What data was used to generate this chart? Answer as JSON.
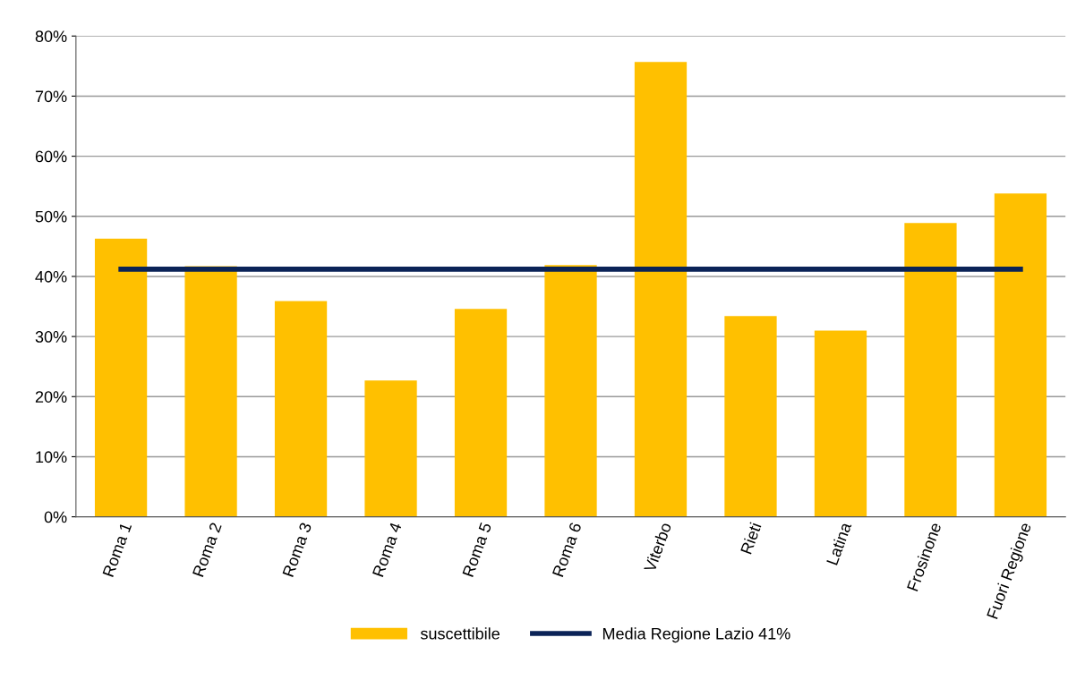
{
  "chart_data": {
    "type": "bar",
    "categories": [
      "Roma 1",
      "Roma 2",
      "Roma 3",
      "Roma 4",
      "Roma 5",
      "Roma 6",
      "Viterbo",
      "Rieti",
      "Latina",
      "Frosinone",
      "Fuori Regione"
    ],
    "series": [
      {
        "name": "suscettibile",
        "color": "#ffc000",
        "values": [
          46.3,
          41.7,
          35.9,
          22.7,
          34.6,
          41.9,
          75.7,
          33.4,
          31.0,
          48.9,
          53.8
        ]
      },
      {
        "name": "Media Regione Lazio 41%",
        "type": "line",
        "color": "#0b2357",
        "values": [
          41.2,
          41.2,
          41.2,
          41.2,
          41.2,
          41.2,
          41.2,
          41.2,
          41.2,
          41.2,
          41.2
        ]
      }
    ],
    "ylim": [
      0,
      80
    ],
    "yticks": [
      {
        "value": 0,
        "label": "0%"
      },
      {
        "value": 10,
        "label": "10%"
      },
      {
        "value": 20,
        "label": "20%"
      },
      {
        "value": 30,
        "label": "30%"
      },
      {
        "value": 40,
        "label": "40%"
      },
      {
        "value": 50,
        "label": "50%"
      },
      {
        "value": 60,
        "label": "60%"
      },
      {
        "value": 70,
        "label": "70%"
      },
      {
        "value": 80,
        "label": "80%"
      }
    ],
    "grid": "y",
    "legend": "bottom",
    "marker": "none"
  }
}
